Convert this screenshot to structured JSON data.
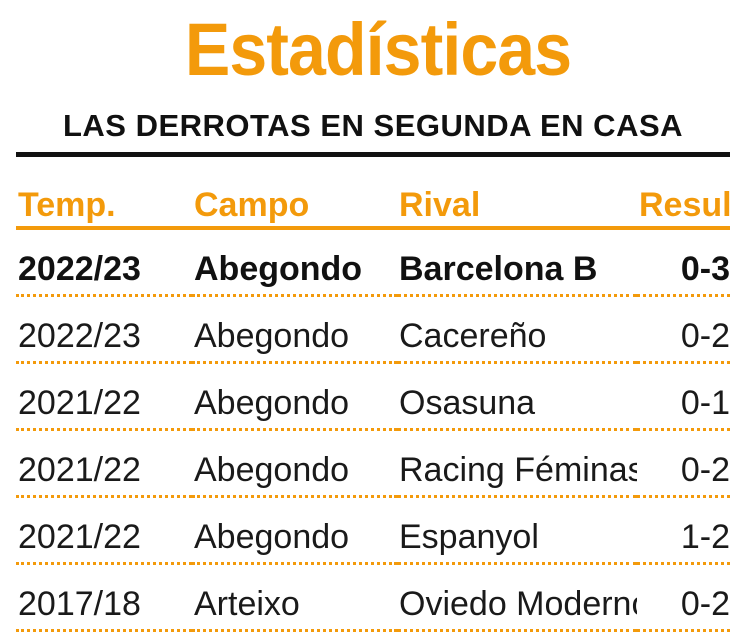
{
  "title": "Estadísticas",
  "subtitle": "LAS DERROTAS EN SEGUNDA EN CASA",
  "colors": {
    "accent": "#f39a0b",
    "text": "#111111"
  },
  "table": {
    "headers": [
      "Temp.",
      "Campo",
      "Rival",
      "Result."
    ],
    "rows": [
      {
        "season": "2022/23",
        "venue": "Abegondo",
        "rival": "Barcelona B",
        "result": "0-3",
        "highlight": true
      },
      {
        "season": "2022/23",
        "venue": "Abegondo",
        "rival": "Cacereño",
        "result": "0-2"
      },
      {
        "season": "2021/22",
        "venue": "Abegondo",
        "rival": "Osasuna",
        "result": "0-1"
      },
      {
        "season": "2021/22",
        "venue": "Abegondo",
        "rival": "Racing Féminas",
        "result": "0-2"
      },
      {
        "season": "2021/22",
        "venue": "Abegondo",
        "rival": "Espanyol",
        "result": "1-2"
      },
      {
        "season": "2017/18",
        "venue": "Arteixo",
        "rival": "Oviedo Moderno",
        "result": "0-2"
      }
    ]
  }
}
